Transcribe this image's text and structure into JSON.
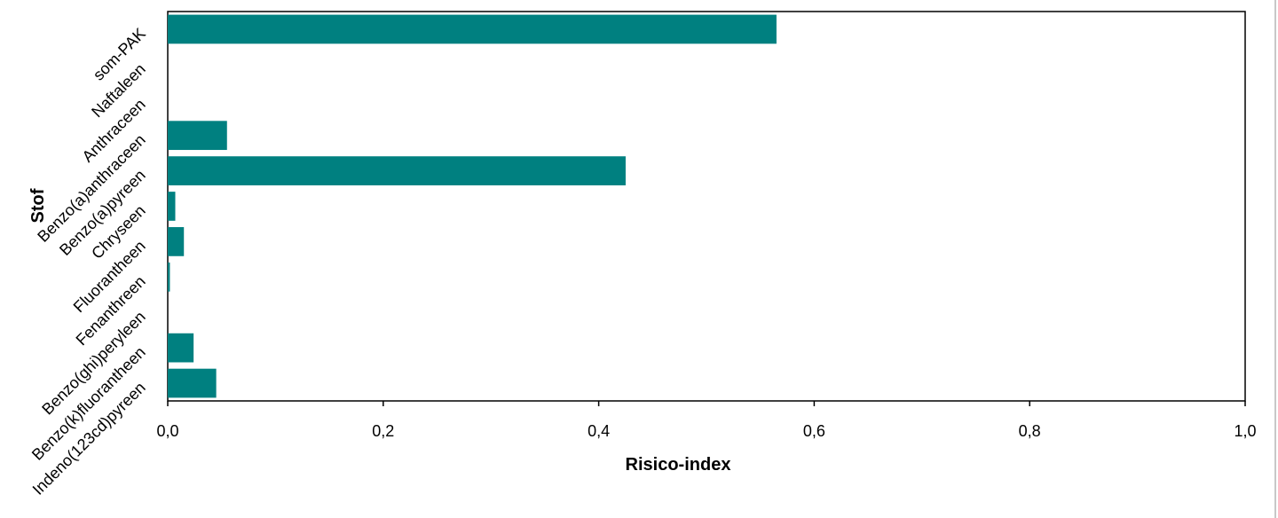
{
  "chart_data": {
    "type": "bar",
    "orientation": "horizontal",
    "categories": [
      "som-PAK",
      "Naftaleen",
      "Anthraceen",
      "Benzo(a)anthraceen",
      "Benzo(a)pyreen",
      "Chryseen",
      "Fluorantheen",
      "Fenanthreen",
      "Benzo(ghi)peryleen",
      "Benzo(k)fluorantheen",
      "Indeno(123cd)pyreen"
    ],
    "values": [
      0.565,
      0,
      0,
      0.055,
      0.425,
      0.007,
      0.015,
      0.002,
      0,
      0.024,
      0.045
    ],
    "xlabel": "Risico-index",
    "ylabel": "Stof",
    "xlim": [
      0,
      1.0
    ],
    "xticks": [
      "0,0",
      "0,2",
      "0,4",
      "0,6",
      "0,8",
      "1,0"
    ],
    "bar_color": "#008080",
    "grid": false
  }
}
